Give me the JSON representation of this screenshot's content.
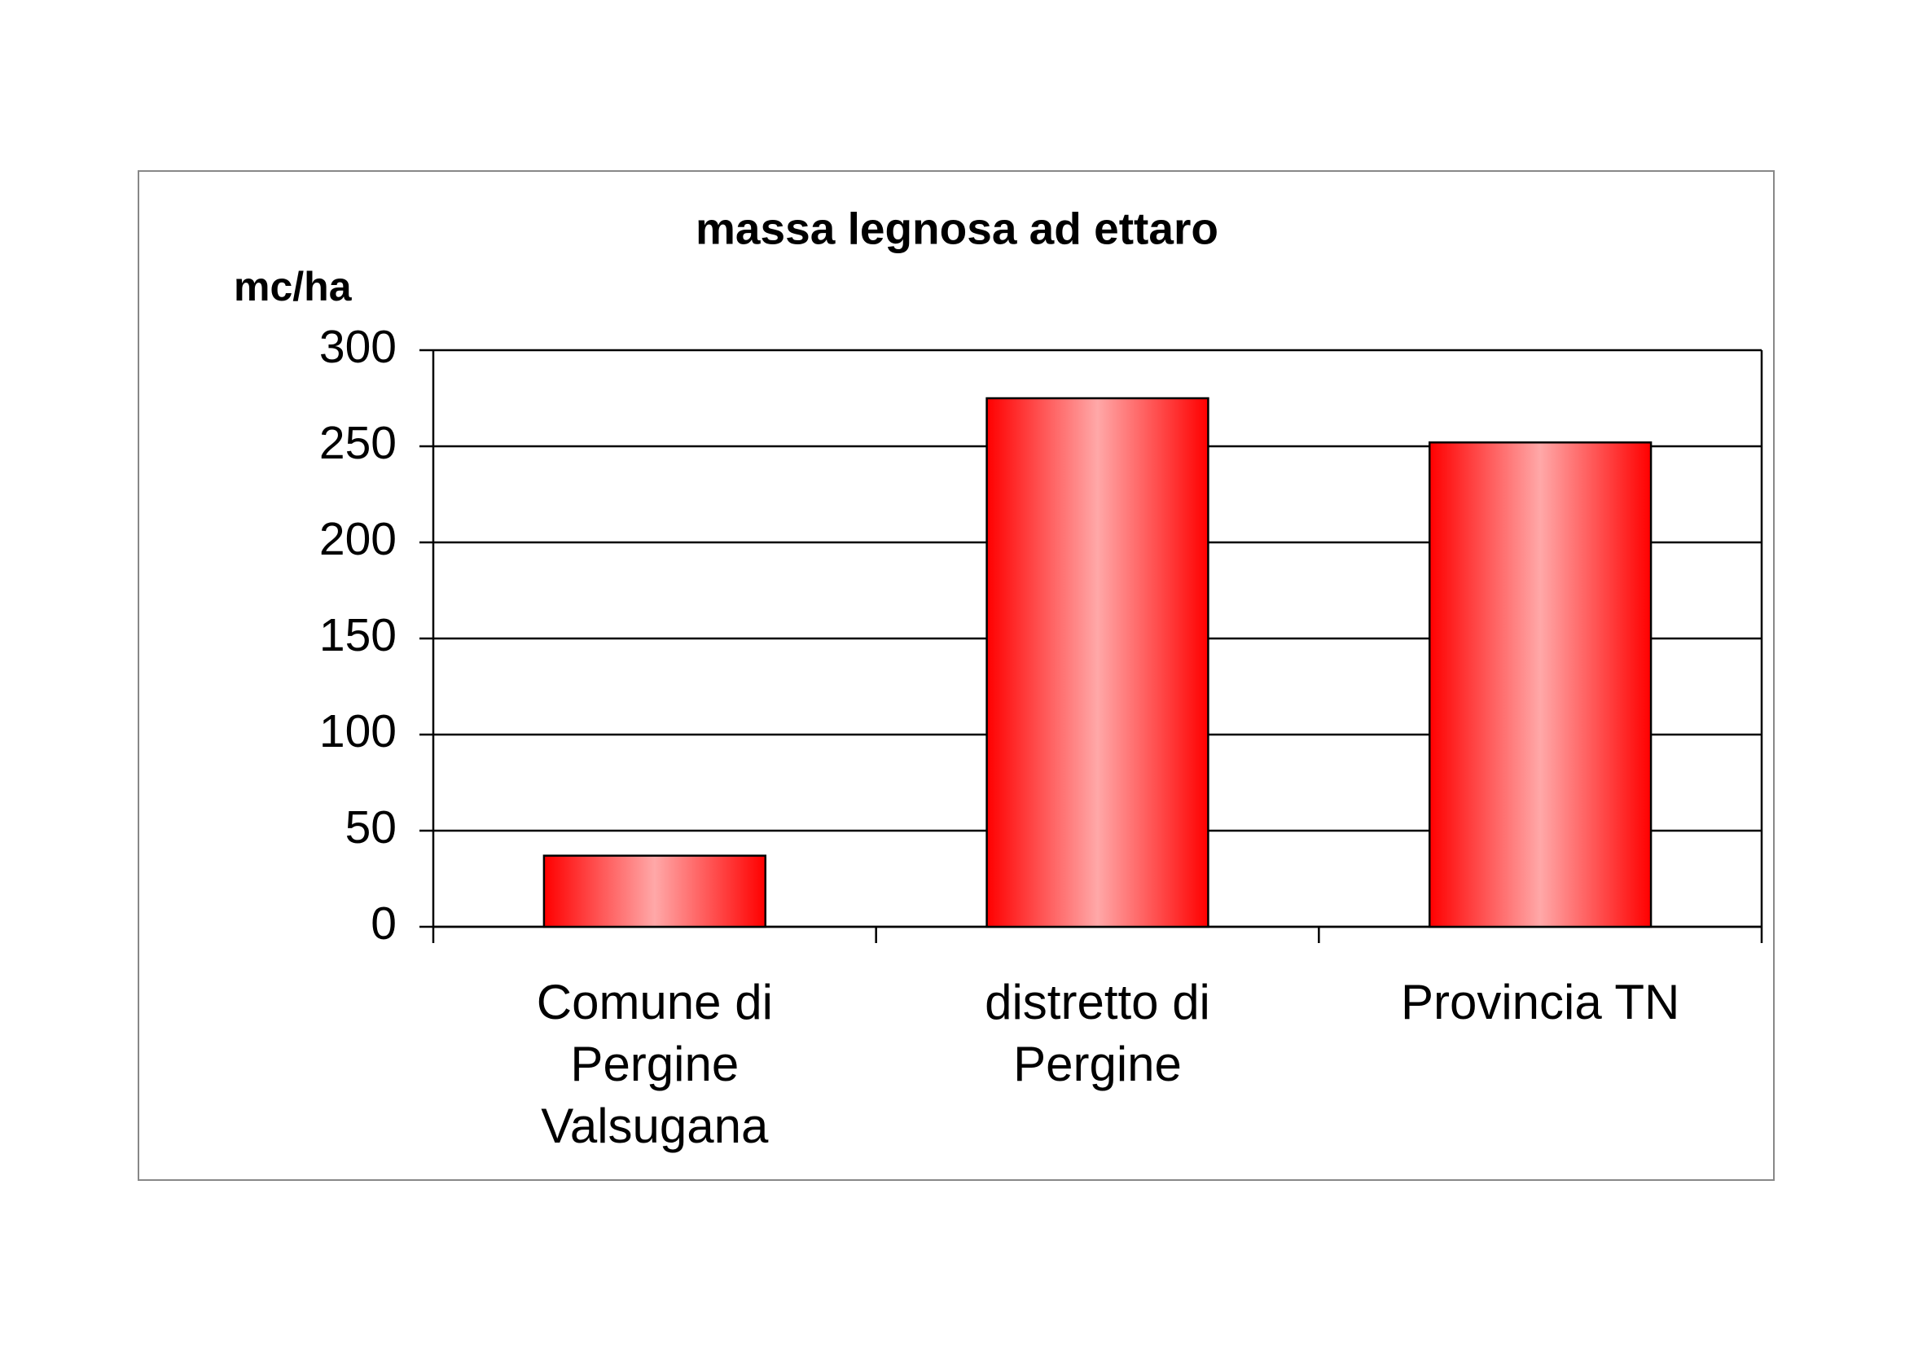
{
  "chart_data": {
    "type": "bar",
    "title": "massa legnosa ad ettaro",
    "y_label": "mc/ha",
    "categories": [
      "Comune di Pergine Valsugana",
      "distretto di Pergine",
      "Provincia TN"
    ],
    "values": [
      37,
      275,
      252
    ],
    "color": "#ff0000",
    "ylim": [
      0,
      300
    ],
    "yticks": [
      0,
      50,
      100,
      150,
      200,
      250,
      300
    ],
    "grid": true
  }
}
